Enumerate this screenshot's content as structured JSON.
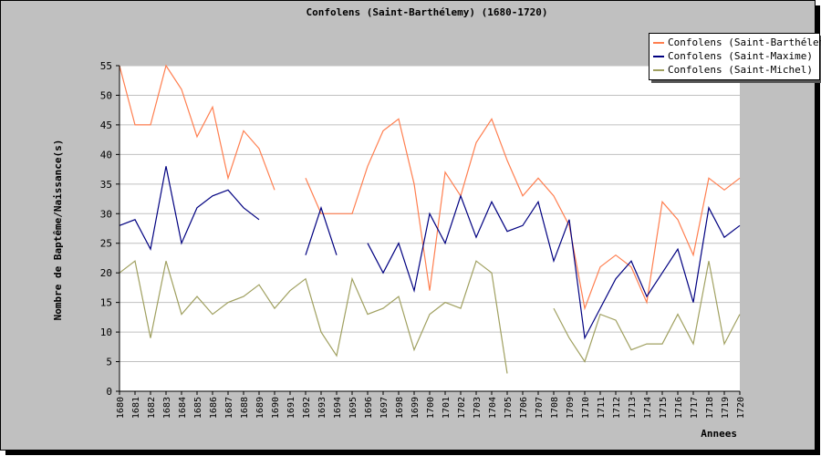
{
  "chart_data": {
    "type": "line",
    "title": "Confolens (Saint-Barthélemy) (1680-1720)",
    "xlabel": "Annees",
    "ylabel": "Nombre de Baptême/Naissance(s)",
    "ylim": [
      0,
      55
    ],
    "yticks": [
      0,
      5,
      10,
      15,
      20,
      25,
      30,
      35,
      40,
      45,
      50,
      55
    ],
    "grid": true,
    "legend_position": "top-right",
    "x": [
      1680,
      1681,
      1682,
      1683,
      1684,
      1685,
      1686,
      1687,
      1688,
      1689,
      1690,
      1691,
      1692,
      1693,
      1694,
      1695,
      1696,
      1697,
      1698,
      1699,
      1700,
      1701,
      1702,
      1703,
      1704,
      1705,
      1706,
      1707,
      1708,
      1709,
      1710,
      1711,
      1712,
      1713,
      1714,
      1715,
      1716,
      1717,
      1718,
      1719,
      1720
    ],
    "series": [
      {
        "name": "Confolens (Saint-Barthélemy)",
        "color": "#ff7f50",
        "values": [
          55,
          45,
          45,
          55,
          51,
          43,
          48,
          36,
          44,
          41,
          34,
          null,
          36,
          30,
          30,
          30,
          38,
          44,
          46,
          35,
          17,
          37,
          33,
          42,
          46,
          39,
          33,
          36,
          33,
          28,
          14,
          21,
          23,
          21,
          15,
          32,
          29,
          23,
          36,
          34,
          36
        ]
      },
      {
        "name": "Confolens (Saint-Maxime)",
        "color": "#000080",
        "values": [
          28,
          29,
          24,
          38,
          25,
          31,
          33,
          34,
          31,
          29,
          null,
          null,
          23,
          31,
          23,
          null,
          25,
          20,
          25,
          17,
          30,
          25,
          33,
          26,
          32,
          27,
          28,
          32,
          22,
          29,
          9,
          14,
          19,
          22,
          16,
          20,
          24,
          15,
          31,
          26,
          28
        ]
      },
      {
        "name": "Confolens (Saint-Michel)",
        "color": "#a0a060",
        "values": [
          20,
          22,
          9,
          22,
          13,
          16,
          13,
          15,
          16,
          18,
          14,
          17,
          19,
          10,
          6,
          19,
          13,
          14,
          16,
          7,
          13,
          15,
          14,
          22,
          20,
          3,
          null,
          null,
          14,
          9,
          5,
          13,
          12,
          7,
          8,
          8,
          13,
          8,
          22,
          8,
          13
        ]
      }
    ]
  }
}
